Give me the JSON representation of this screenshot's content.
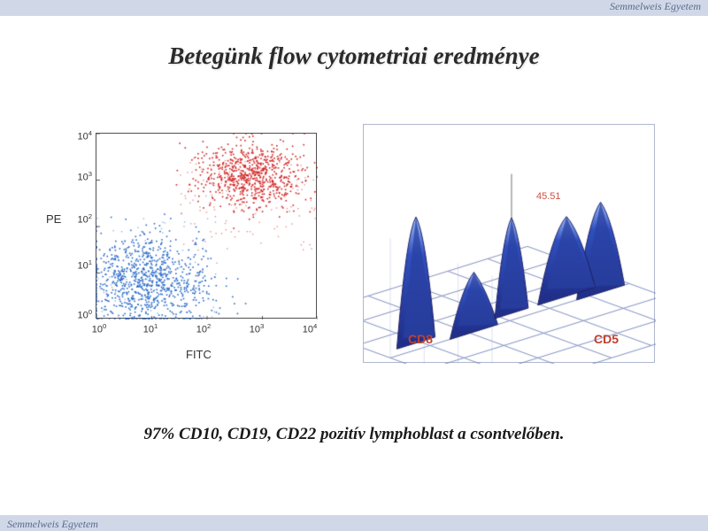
{
  "header": {
    "institution": "Semmelweis Egyetem"
  },
  "footer": {
    "institution": "Semmelweis Egyetem"
  },
  "title": "Betegünk flow cytometriai eredménye",
  "caption": "97% CD10, CD19, CD22 pozitív lymphoblast a csontvelőben.",
  "scatter": {
    "type": "scatter",
    "xlabel": "FITC",
    "ylabel": "PE",
    "xlim": [
      1,
      10000
    ],
    "ylim": [
      1,
      10000
    ],
    "scale": "log",
    "xticks": [
      "10⁰",
      "10¹",
      "10²",
      "10³",
      "10⁴"
    ],
    "yticks": [
      "10⁰",
      "10¹",
      "10²",
      "10³",
      "10⁴"
    ],
    "tick_fontsize": 11,
    "label_fontsize": 13,
    "border_color": "#505050",
    "background_color": "#ffffff",
    "populations": [
      {
        "name": "blue-cluster",
        "color": "#2868c8",
        "marker": "dot",
        "marker_size": 1.6,
        "approx_count": 900,
        "centroid_log10": [
          0.9,
          0.8
        ],
        "spread_log10": [
          0.55,
          0.5
        ]
      },
      {
        "name": "red-cluster",
        "color": "#d02020",
        "marker": "dot",
        "marker_size": 1.6,
        "approx_count": 700,
        "centroid_log10": [
          2.8,
          3.1
        ],
        "spread_log10": [
          0.5,
          0.35
        ]
      }
    ]
  },
  "threed": {
    "type": "3d-density",
    "x_axis_label": "CD8",
    "z_axis_label": "CD5",
    "marker_label": "45.51",
    "grid_color": "#8090c0",
    "surface_color": "#3050c0",
    "surface_highlight": "#a0c0ff",
    "background_color": "#ffffff",
    "label_color": "#c04030",
    "label_fontsize": 14,
    "peaks": [
      {
        "grid_x": 0.15,
        "grid_y": 0.55,
        "height": 0.95,
        "width": 0.08
      },
      {
        "grid_x": 0.35,
        "grid_y": 0.5,
        "height": 0.45,
        "width": 0.1
      },
      {
        "grid_x": 0.55,
        "grid_y": 0.55,
        "height": 0.72,
        "width": 0.07
      },
      {
        "grid_x": 0.78,
        "grid_y": 0.55,
        "height": 0.6,
        "width": 0.12
      },
      {
        "grid_x": 0.88,
        "grid_y": 0.5,
        "height": 0.68,
        "width": 0.1
      }
    ],
    "grid_divisions": 6
  },
  "colors": {
    "header_bg": "#d0d8e8",
    "header_text": "#5a6a8a",
    "title_color": "#2a2a2a",
    "caption_color": "#1a1a1a"
  }
}
